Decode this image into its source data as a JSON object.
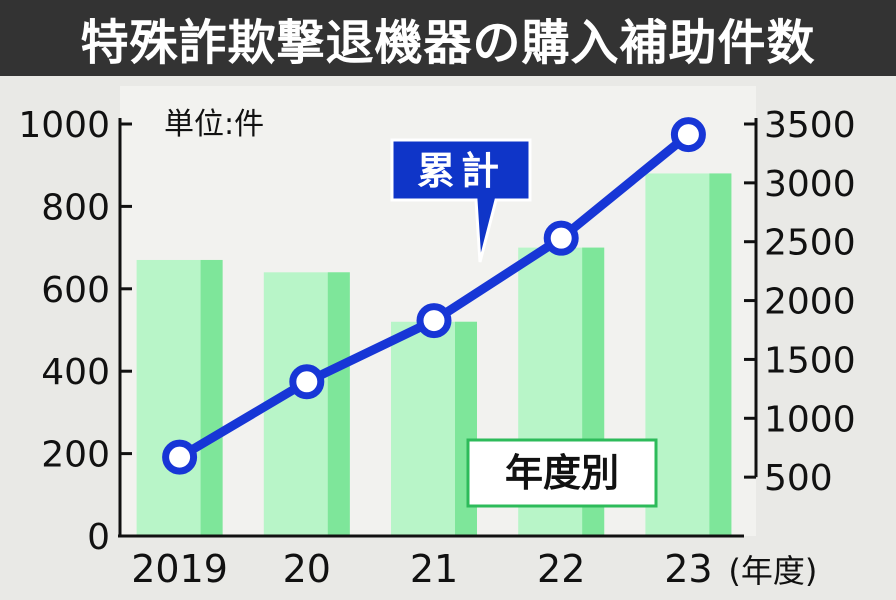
{
  "title": "特殊詐欺撃退機器の購入補助件数",
  "unit_label": "単位:件",
  "legend_line": "累計",
  "legend_bar": "年度別",
  "colors": {
    "title_bg": "#333333",
    "plot_bg": "#f2f2ef",
    "bar_light": "#b8f5c8",
    "bar_dark": "#7ee69a",
    "line": "#1736d6",
    "label_box_bg": "#0f35c8",
    "bar_label_border": "#2dbb5a"
  },
  "chart_data": {
    "type": "bar+line",
    "categories": [
      "2019",
      "20",
      "21",
      "22",
      "23"
    ],
    "x_suffix": "(年度)",
    "left_axis": {
      "ylim": [
        0,
        1000
      ],
      "ticks": [
        "0",
        "200",
        "400",
        "600",
        "800",
        "1000"
      ]
    },
    "right_axis": {
      "ylim": [
        0,
        3500
      ],
      "ticks": [
        "500",
        "1000",
        "1500",
        "2000",
        "2500",
        "3000",
        "3500"
      ]
    },
    "series": [
      {
        "name": "年度別",
        "type": "bar",
        "axis": "left",
        "values": [
          670,
          640,
          520,
          700,
          880
        ]
      },
      {
        "name": "累計",
        "type": "line",
        "axis": "right",
        "values": [
          670,
          1310,
          1830,
          2530,
          3410
        ]
      }
    ]
  }
}
